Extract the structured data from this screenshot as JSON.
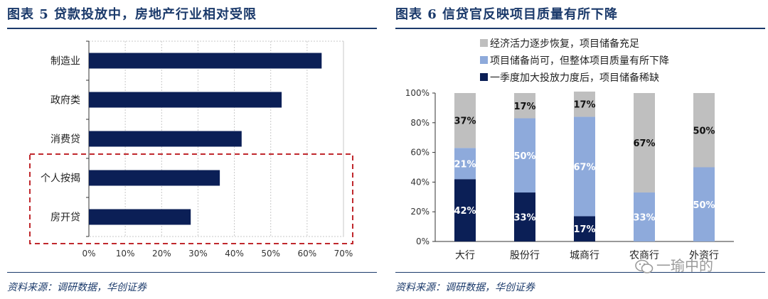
{
  "left": {
    "title": "图表 5  贷款投放中，房地产行业相对受限",
    "source": "资料来源：调研数据，华创证券",
    "chart_data": {
      "type": "bar",
      "orientation": "horizontal",
      "categories": [
        "制造业",
        "政府类",
        "消费贷",
        "个人按揭",
        "房开贷"
      ],
      "values": [
        64,
        53,
        42,
        36,
        28
      ],
      "value_unit": "%",
      "xlim": [
        0,
        70
      ],
      "x_ticks": [
        "0%",
        "10%",
        "20%",
        "30%",
        "40%",
        "50%",
        "60%",
        "70%"
      ],
      "grid": true,
      "bar_color": "#0b1f56",
      "highlight_box": {
        "categories": [
          "个人按揭",
          "房开贷"
        ],
        "color": "#c0282d",
        "style": "dashed"
      }
    }
  },
  "right": {
    "title": "图表 6  信贷官反映项目质量有所下降",
    "source": "资料来源：调研数据，华创证券",
    "chart_data": {
      "type": "bar",
      "stacked": true,
      "categories": [
        "大行",
        "股份行",
        "城商行",
        "农商行",
        "外资行"
      ],
      "series": [
        {
          "name": "一季度加大投放力度后，项目储备稀缺",
          "values": [
            42,
            33,
            17,
            0,
            0
          ],
          "labels": [
            "42%",
            "33%",
            "17%",
            "",
            ""
          ],
          "color": "#0b1f56"
        },
        {
          "name": "项目储备尚可，但整体项目质量有所下降",
          "values": [
            21,
            50,
            67,
            33,
            50
          ],
          "labels": [
            "21%",
            "50%",
            "67%",
            "33%",
            "50%"
          ],
          "color": "#8eaadb"
        },
        {
          "name": "经济活力逐步恢复，项目储备充足",
          "values": [
            37,
            17,
            17,
            67,
            50
          ],
          "labels": [
            "37%",
            "17%",
            "17%",
            "67%",
            "50%"
          ],
          "color": "#bfbfbf"
        }
      ],
      "ylim": [
        0,
        100
      ],
      "y_ticks": [
        "0%",
        "20%",
        "40%",
        "60%",
        "80%",
        "100%"
      ],
      "legend_position": "top"
    }
  },
  "watermark": {
    "text": "一瑜中的"
  },
  "colors": {
    "navy": "#1b3a6b",
    "bar_navy": "#0b1f56",
    "light_blue": "#8eaadb",
    "grey": "#bfbfbf",
    "red": "#c0282d"
  }
}
